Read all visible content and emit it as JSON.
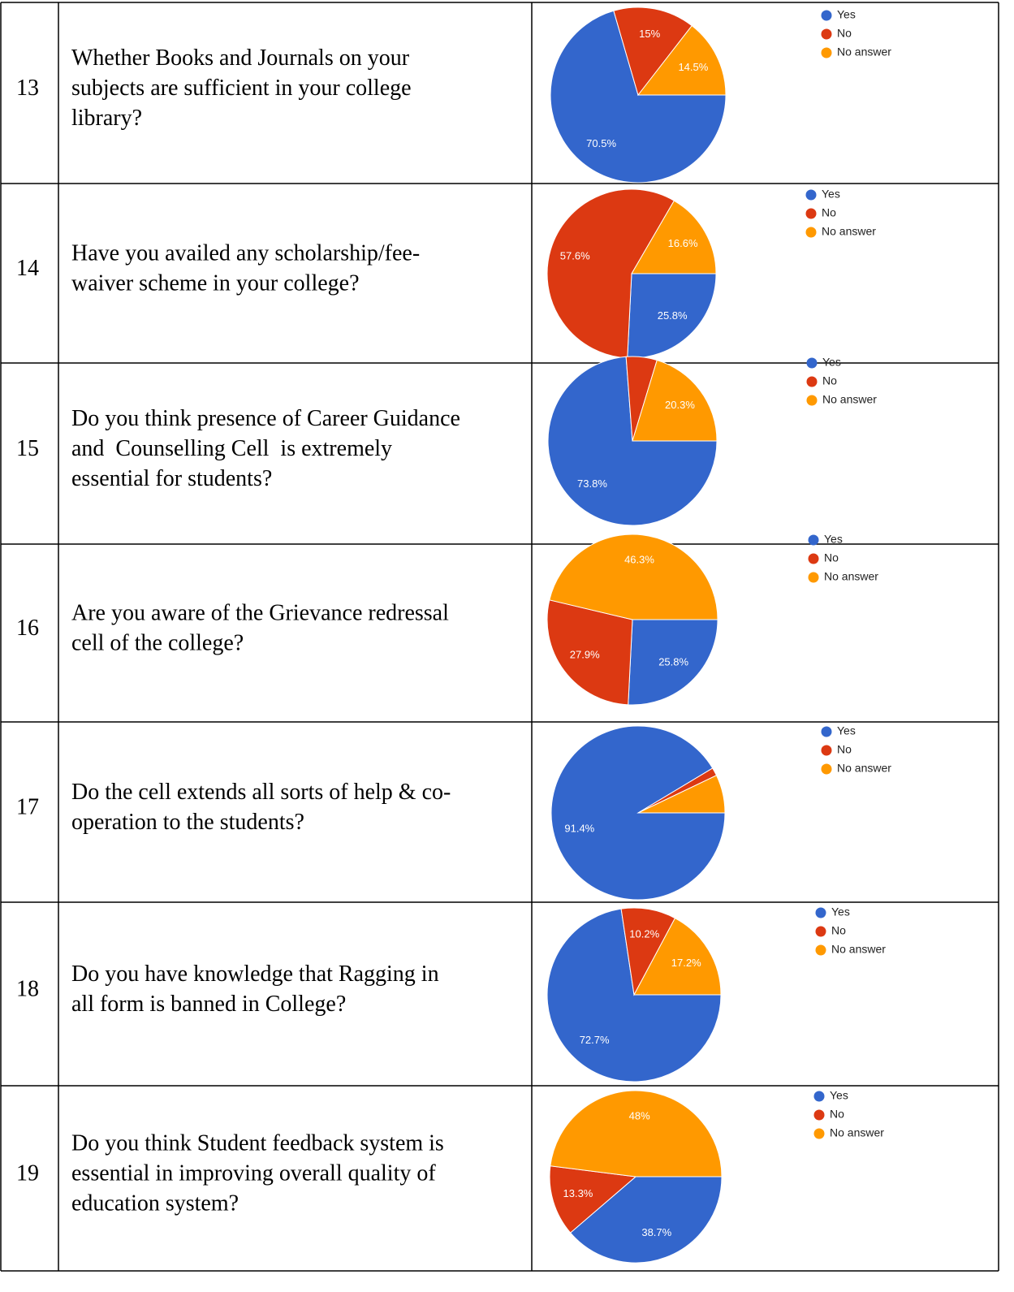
{
  "rows": [
    {
      "number": "13",
      "question": [
        "Whether Books and Journals on your",
        "subjects are sufficient in your college",
        "library?"
      ]
    },
    {
      "number": "14",
      "question": [
        "Have you availed any scholarship/fee-",
        "waiver scheme in your college?"
      ]
    },
    {
      "number": "15",
      "question": [
        "Do you think presence of Career Guidance",
        "and  Counselling Cell  is extremely",
        "essential for students?"
      ]
    },
    {
      "number": "16",
      "question": [
        "Are you aware of the Grievance redressal",
        "cell of the college?"
      ]
    },
    {
      "number": "17",
      "question": [
        "Do the cell extends all sorts of help & co-",
        "operation to the students?"
      ]
    },
    {
      "number": "18",
      "question": [
        "Do you have knowledge that Ragging in",
        "all form is banned in College?"
      ]
    },
    {
      "number": "19",
      "question": [
        "Do you think Student feedback system is",
        "essential in improving overall quality of",
        "education system?"
      ]
    }
  ],
  "chart_data": [
    {
      "type": "pie",
      "categories": [
        "Yes",
        "No",
        "No answer"
      ],
      "values": [
        70.5,
        15,
        14.5
      ],
      "value_labels": [
        "70.5%",
        "15%",
        "14.5%"
      ],
      "colors": [
        "#3366cc",
        "#dc3912",
        "#ff9900"
      ]
    },
    {
      "type": "pie",
      "categories": [
        "Yes",
        "No",
        "No answer"
      ],
      "values": [
        25.8,
        57.6,
        16.6
      ],
      "value_labels": [
        "25.8%",
        "57.6%",
        "16.6%"
      ],
      "colors": [
        "#3366cc",
        "#dc3912",
        "#ff9900"
      ]
    },
    {
      "type": "pie",
      "categories": [
        "Yes",
        "No",
        "No answer"
      ],
      "values": [
        73.8,
        5.9,
        20.3
      ],
      "value_labels": [
        "73.8%",
        null,
        "20.3%"
      ],
      "colors": [
        "#3366cc",
        "#dc3912",
        "#ff9900"
      ]
    },
    {
      "type": "pie",
      "categories": [
        "Yes",
        "No",
        "No answer"
      ],
      "values": [
        25.8,
        27.9,
        46.3
      ],
      "value_labels": [
        "25.8%",
        "27.9%",
        "46.3%"
      ],
      "colors": [
        "#3366cc",
        "#dc3912",
        "#ff9900"
      ]
    },
    {
      "type": "pie",
      "categories": [
        "Yes",
        "No",
        "No answer"
      ],
      "values": [
        91.4,
        1.5,
        7.1
      ],
      "value_labels": [
        "91.4%",
        null,
        null
      ],
      "colors": [
        "#3366cc",
        "#dc3912",
        "#ff9900"
      ]
    },
    {
      "type": "pie",
      "categories": [
        "Yes",
        "No",
        "No answer"
      ],
      "values": [
        72.7,
        10.2,
        17.2
      ],
      "value_labels": [
        "72.7%",
        "10.2%",
        "17.2%"
      ],
      "colors": [
        "#3366cc",
        "#dc3912",
        "#ff9900"
      ]
    },
    {
      "type": "pie",
      "categories": [
        "Yes",
        "No",
        "No answer"
      ],
      "values": [
        38.7,
        13.3,
        48
      ],
      "value_labels": [
        "38.7%",
        "13.3%",
        "48%"
      ],
      "colors": [
        "#3366cc",
        "#dc3912",
        "#ff9900"
      ]
    }
  ]
}
